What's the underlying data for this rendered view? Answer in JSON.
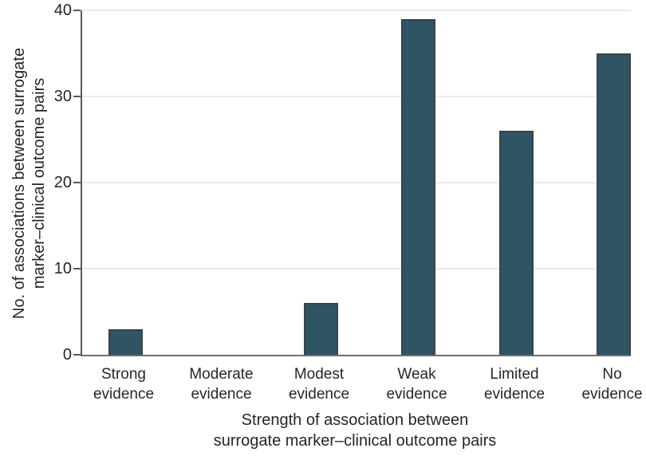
{
  "chart_data": {
    "type": "bar",
    "title": "",
    "categories": [
      "Strong evidence",
      "Moderate evidence",
      "Modest evidence",
      "Weak evidence",
      "Limited evidence",
      "No evidence"
    ],
    "category_lines": [
      [
        "Strong",
        "evidence"
      ],
      [
        "Moderate",
        "evidence"
      ],
      [
        "Modest",
        "evidence"
      ],
      [
        "Weak",
        "evidence"
      ],
      [
        "Limited",
        "evidence"
      ],
      [
        "No",
        "evidence"
      ]
    ],
    "values": [
      3,
      0,
      6,
      39,
      26,
      35
    ],
    "xlabel": "Strength of association between surrogate marker–clinical outcome pairs",
    "xlabel_lines": [
      "Strength of association between",
      "surrogate marker–clinical outcome pairs"
    ],
    "ylabel": "No. of associations between surrogate marker–clinical outcome pairs",
    "ylabel_lines": [
      "No. of associations between surrogate",
      "marker–clinical outcome pairs"
    ],
    "yticks": [
      0,
      10,
      20,
      30,
      40
    ],
    "ylim": [
      0,
      40
    ],
    "grid": "horizontal gridlines at 10, 20, 30, 40",
    "legend": "none",
    "colors": {
      "bar_fill": "#2f5464",
      "bar_border": "#39424a",
      "axis": "#57595b",
      "gridline": "#ebebeb",
      "text": "#262626"
    }
  }
}
